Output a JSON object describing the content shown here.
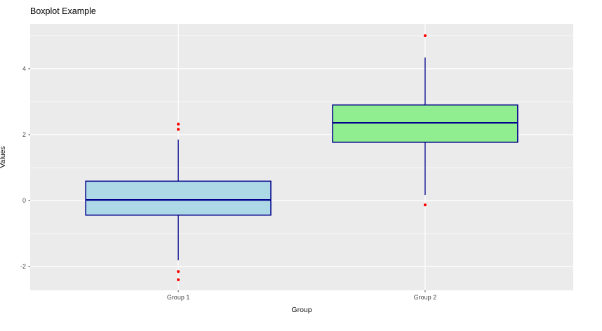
{
  "chart_data": {
    "type": "boxplot",
    "title": "Boxplot Example",
    "xlabel": "Group",
    "ylabel": "Values",
    "categories": [
      "Group 1",
      "Group 2"
    ],
    "ylim": [
      -2.72,
      5.36
    ],
    "y_major_ticks": [
      -2,
      0,
      2,
      4
    ],
    "y_minor_gridlines": [
      -1,
      1,
      3,
      5
    ],
    "grid": "major and minor horizontal, major vertical at category centers",
    "legend_position": "none",
    "series": [
      {
        "name": "Group 1",
        "whisker_low": -1.81,
        "q1": -0.44,
        "median": 0.02,
        "q3": 0.59,
        "whisker_high": 1.85,
        "outliers": [
          2.32,
          2.16,
          -2.15,
          -2.4
        ],
        "fill_color": "#ADD8E6"
      },
      {
        "name": "Group 2",
        "whisker_low": 0.17,
        "q1": 1.77,
        "median": 2.36,
        "q3": 2.9,
        "whisker_high": 4.34,
        "outliers": [
          5.0,
          -0.13
        ],
        "fill_color": "#90EE90"
      }
    ],
    "colors": {
      "box_border": "#00008B",
      "median_line": "#00008B",
      "whisker": "#00008B",
      "outlier_point": "#FF0000",
      "panel_background": "#EBEBEB",
      "gridline": "#FFFFFF",
      "axis_text": "#4D4D4D",
      "tick_mark": "#333333",
      "title_text": "#000000",
      "page_background": "#FFFFFF"
    }
  }
}
